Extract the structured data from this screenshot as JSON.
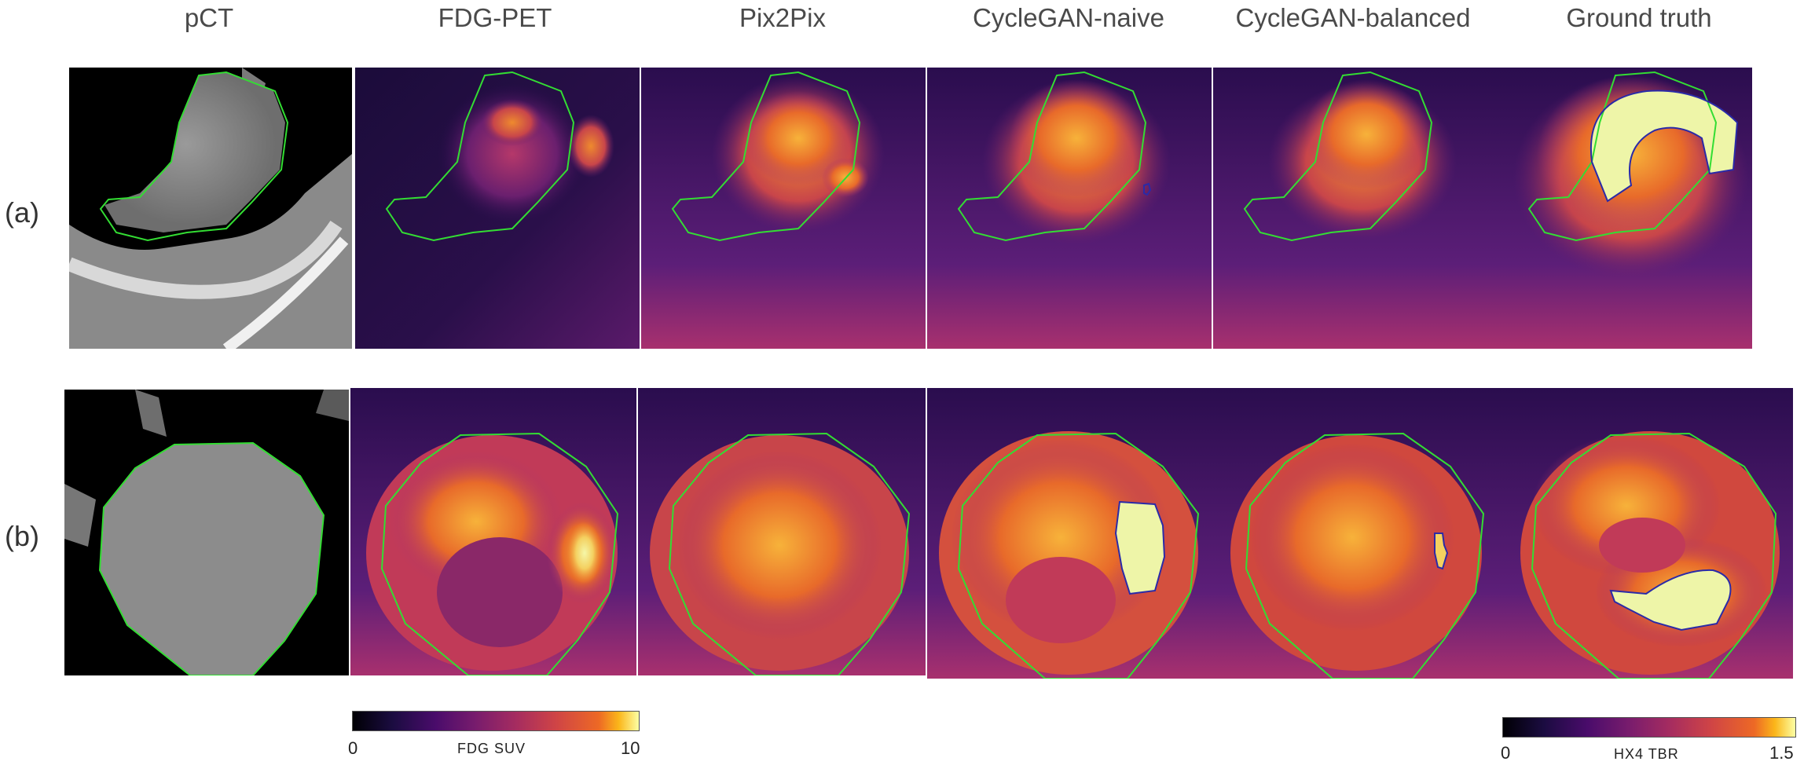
{
  "columns": [
    "pCT",
    "FDG-PET",
    "Pix2Pix",
    "CycleGAN-naive",
    "CycleGAN-balanced",
    "Ground truth"
  ],
  "rows": [
    "(a)",
    "(b)"
  ],
  "colorbars": {
    "fdg": {
      "min": "0",
      "max": "10",
      "label": "FDG  SUV",
      "colormap": "inferno"
    },
    "hx4": {
      "min": "0",
      "max": "1.5",
      "label": "HX4  TBR",
      "colormap": "inferno"
    }
  },
  "colors": {
    "contour_tumor": "#33dd33",
    "contour_hypoxic": "#2a2aa8"
  }
}
